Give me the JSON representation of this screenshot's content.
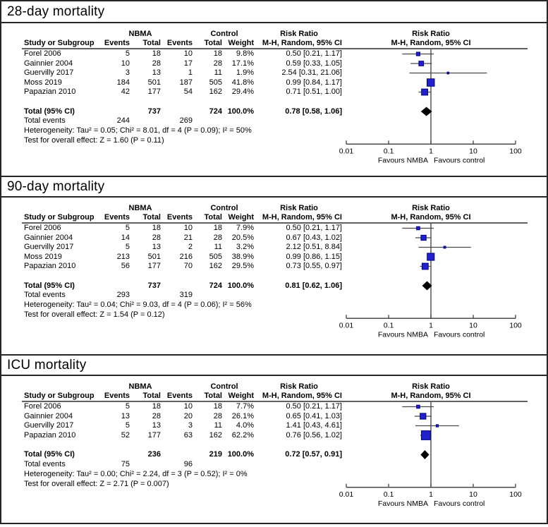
{
  "table_headers": {
    "group1": "NBMA",
    "group2": "Control",
    "study": "Study or Subgroup",
    "events": "Events",
    "total": "Total",
    "weight": "Weight",
    "rr_line1": "Risk Ratio",
    "rr_line2": "M-H, Random, 95% CI",
    "plot_line1": "Risk Ratio",
    "plot_line2": "M-H, Random, 95% CI"
  },
  "axis": {
    "scale": "log",
    "range": [
      0.01,
      100
    ],
    "ticks": [
      "0.01",
      "0.1",
      "1",
      "10",
      "100"
    ],
    "tick_values": [
      0.01,
      0.1,
      1,
      10,
      100
    ],
    "favours_left": "Favours NMBA",
    "favours_right": "Favours control"
  },
  "colors": {
    "square_fill": "#2222cc",
    "square_border": "#000080",
    "diamond": "#000000",
    "plot_line": "#4a4a4a",
    "rule": "#000000"
  },
  "chart_data": [
    {
      "type": "forest",
      "title": "28-day mortality",
      "studies": [
        {
          "study": "Forel 2006",
          "nbma_events": "5",
          "nbma_total": "18",
          "control_events": "10",
          "control_total": "18",
          "weight": "9.8%",
          "weight_value": 9.8,
          "rr_label": "0.50 [0.21, 1.17]",
          "rr": 0.5,
          "ci_low": 0.21,
          "ci_high": 1.17
        },
        {
          "study": "Gainnier 2004",
          "nbma_events": "10",
          "nbma_total": "28",
          "control_events": "17",
          "control_total": "28",
          "weight": "17.1%",
          "weight_value": 17.1,
          "rr_label": "0.59 [0.33, 1.05]",
          "rr": 0.59,
          "ci_low": 0.33,
          "ci_high": 1.05
        },
        {
          "study": "Guervilly 2017",
          "nbma_events": "3",
          "nbma_total": "13",
          "control_events": "1",
          "control_total": "11",
          "weight": "1.9%",
          "weight_value": 1.9,
          "rr_label": "2.54 [0.31, 21.06]",
          "rr": 2.54,
          "ci_low": 0.31,
          "ci_high": 21.06
        },
        {
          "study": "Moss 2019",
          "nbma_events": "184",
          "nbma_total": "501",
          "control_events": "187",
          "control_total": "505",
          "weight": "41.8%",
          "weight_value": 41.8,
          "rr_label": "0.99 [0.84, 1.17]",
          "rr": 0.99,
          "ci_low": 0.84,
          "ci_high": 1.17
        },
        {
          "study": "Papazian 2010",
          "nbma_events": "42",
          "nbma_total": "177",
          "control_events": "54",
          "control_total": "162",
          "weight": "29.4%",
          "weight_value": 29.4,
          "rr_label": "0.71 [0.51, 1.00]",
          "rr": 0.71,
          "ci_low": 0.51,
          "ci_high": 1.0
        }
      ],
      "total": {
        "label": "Total (95% CI)",
        "nbma_total": "737",
        "control_total": "724",
        "weight": "100.0%",
        "rr_label": "0.78 [0.58, 1.06]",
        "rr": 0.78,
        "ci_low": 0.58,
        "ci_high": 1.06
      },
      "total_events": {
        "label": "Total events",
        "nbma": "244",
        "control": "269"
      },
      "heterogeneity": "Heterogeneity: Tau² = 0.05; Chi² = 8.01, df = 4 (P = 0.09); I² = 50%",
      "overall_effect": "Test for overall effect: Z = 1.60 (P = 0.11)"
    },
    {
      "type": "forest",
      "title": "90-day mortality",
      "studies": [
        {
          "study": "Forel 2006",
          "nbma_events": "5",
          "nbma_total": "18",
          "control_events": "10",
          "control_total": "18",
          "weight": "7.9%",
          "weight_value": 7.9,
          "rr_label": "0.50 [0.21, 1.17]",
          "rr": 0.5,
          "ci_low": 0.21,
          "ci_high": 1.17
        },
        {
          "study": "Gainnier 2004",
          "nbma_events": "14",
          "nbma_total": "28",
          "control_events": "21",
          "control_total": "28",
          "weight": "20.5%",
          "weight_value": 20.5,
          "rr_label": "0.67 [0.43, 1.02]",
          "rr": 0.67,
          "ci_low": 0.43,
          "ci_high": 1.02
        },
        {
          "study": "Guervilly 2017",
          "nbma_events": "5",
          "nbma_total": "13",
          "control_events": "2",
          "control_total": "11",
          "weight": "3.2%",
          "weight_value": 3.2,
          "rr_label": "2.12 [0.51, 8.84]",
          "rr": 2.12,
          "ci_low": 0.51,
          "ci_high": 8.84
        },
        {
          "study": "Moss 2019",
          "nbma_events": "213",
          "nbma_total": "501",
          "control_events": "216",
          "control_total": "505",
          "weight": "38.9%",
          "weight_value": 38.9,
          "rr_label": "0.99 [0.86, 1.15]",
          "rr": 0.99,
          "ci_low": 0.86,
          "ci_high": 1.15
        },
        {
          "study": "Papazian 2010",
          "nbma_events": "56",
          "nbma_total": "177",
          "control_events": "70",
          "control_total": "162",
          "weight": "29.5%",
          "weight_value": 29.5,
          "rr_label": "0.73 [0.55, 0.97]",
          "rr": 0.73,
          "ci_low": 0.55,
          "ci_high": 0.97
        }
      ],
      "total": {
        "label": "Total (95% CI)",
        "nbma_total": "737",
        "control_total": "724",
        "weight": "100.0%",
        "rr_label": "0.81 [0.62, 1.06]",
        "rr": 0.81,
        "ci_low": 0.62,
        "ci_high": 1.06
      },
      "total_events": {
        "label": "Total events",
        "nbma": "293",
        "control": "319"
      },
      "heterogeneity": "Heterogeneity: Tau² = 0.04; Chi² = 9.03, df = 4 (P = 0.06); I² = 56%",
      "overall_effect": "Test for overall effect: Z = 1.54 (P = 0.12)"
    },
    {
      "type": "forest",
      "title": "ICU mortality",
      "studies": [
        {
          "study": "Forel 2006",
          "nbma_events": "5",
          "nbma_total": "18",
          "control_events": "10",
          "control_total": "18",
          "weight": "7.7%",
          "weight_value": 7.7,
          "rr_label": "0.50 [0.21, 1.17]",
          "rr": 0.5,
          "ci_low": 0.21,
          "ci_high": 1.17
        },
        {
          "study": "Gainnier 2004",
          "nbma_events": "13",
          "nbma_total": "28",
          "control_events": "20",
          "control_total": "28",
          "weight": "26.1%",
          "weight_value": 26.1,
          "rr_label": "0.65 [0.41, 1.03]",
          "rr": 0.65,
          "ci_low": 0.41,
          "ci_high": 1.03
        },
        {
          "study": "Guervilly 2017",
          "nbma_events": "5",
          "nbma_total": "13",
          "control_events": "3",
          "control_total": "11",
          "weight": "4.0%",
          "weight_value": 4.0,
          "rr_label": "1.41 [0.43, 4.61]",
          "rr": 1.41,
          "ci_low": 0.43,
          "ci_high": 4.61
        },
        {
          "study": "Papazian 2010",
          "nbma_events": "52",
          "nbma_total": "177",
          "control_events": "63",
          "control_total": "162",
          "weight": "62.2%",
          "weight_value": 62.2,
          "rr_label": "0.76 [0.56, 1.02]",
          "rr": 0.76,
          "ci_low": 0.56,
          "ci_high": 1.02
        }
      ],
      "total": {
        "label": "Total (95% CI)",
        "nbma_total": "236",
        "control_total": "219",
        "weight": "100.0%",
        "rr_label": "0.72 [0.57, 0.91]",
        "rr": 0.72,
        "ci_low": 0.57,
        "ci_high": 0.91
      },
      "total_events": {
        "label": "Total events",
        "nbma": "75",
        "control": "96"
      },
      "heterogeneity": "Heterogeneity: Tau² = 0.00; Chi² = 2.24, df = 3 (P = 0.52); I² = 0%",
      "overall_effect": "Test for overall effect: Z = 2.71 (P = 0.007)"
    }
  ]
}
